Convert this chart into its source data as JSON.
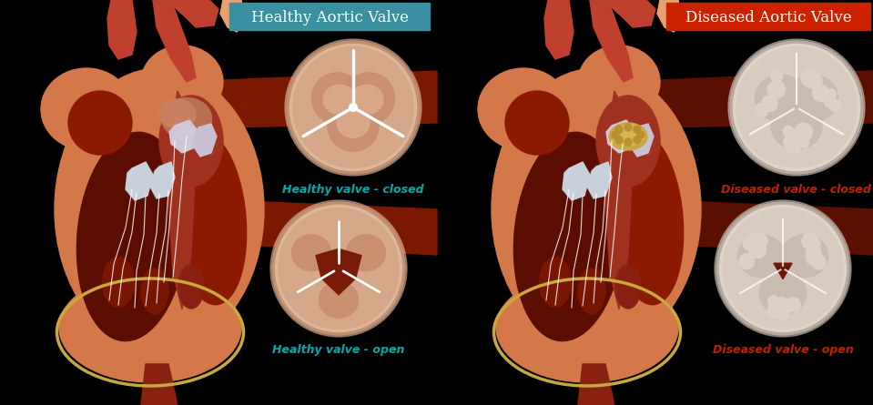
{
  "background_color": "#000000",
  "title_healthy": "Healthy Aortic Valve",
  "title_diseased": "Diseased Aortic Valve",
  "title_healthy_bg": "#3a8fa0",
  "title_diseased_bg": "#cc2200",
  "title_fontsize": 12,
  "label_healthy_closed": "Healthy valve - closed",
  "label_healthy_open": "Healthy valve - open",
  "label_diseased_closed": "Diseased valve - closed",
  "label_diseased_open": "Diseased valve - open",
  "label_color_healthy": "#00aaaa",
  "label_color_diseased": "#bb2200",
  "label_fontsize": 9,
  "figsize": [
    9.59,
    4.45
  ],
  "dpi": 100,
  "heart_skin_color": "#d4784a",
  "heart_skin_light": "#e8a070",
  "heart_interior": "#8b1a00",
  "heart_interior_dark": "#5a0d00",
  "heart_red": "#c04030",
  "aorta_color": "#a03020",
  "band_color_healthy": "#7a1800",
  "band_color_diseased": "#5a1000",
  "valve_h_bg": "#d4a090",
  "valve_h_inner": "#c89080",
  "valve_h_cusp": "#c07060",
  "valve_h_cusp_light": "#d4a090",
  "valve_h_line": "#e8d0c0",
  "valve_d_bg": "#e0d0c0",
  "valve_d_inner": "#d4c4b4",
  "valve_d_cusp": "#c8b8a8",
  "valve_d_line": "#f0e8e0",
  "gold_color": "#c8a840"
}
